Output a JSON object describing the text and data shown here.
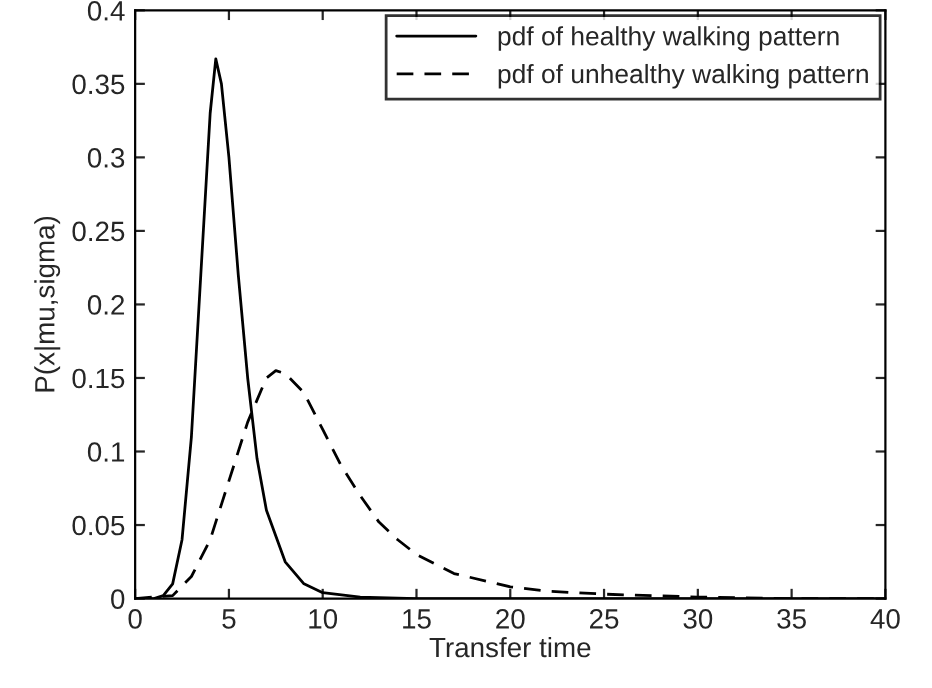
{
  "chart_data": {
    "type": "line",
    "xlabel": "Transfer time",
    "ylabel": "P(x|mu,sigma)",
    "xlim": [
      0,
      40
    ],
    "ylim": [
      0,
      0.4
    ],
    "xticks": [
      0,
      5,
      10,
      15,
      20,
      25,
      30,
      35,
      40
    ],
    "yticks": [
      0,
      0.05,
      0.1,
      0.15,
      0.2,
      0.25,
      0.3,
      0.35,
      0.4
    ],
    "grid": false,
    "legend": "top right",
    "marker": "none",
    "series": [
      {
        "name": "pdf of healthy walking pattern",
        "color": "#000000",
        "line_style": "solid",
        "x": [
          0,
          1,
          1.5,
          2,
          2.5,
          3,
          3.5,
          4,
          4.3,
          4.6,
          5,
          5.5,
          6,
          6.5,
          7,
          8,
          9,
          10,
          12,
          15,
          40
        ],
        "values": [
          0,
          0,
          0.002,
          0.01,
          0.04,
          0.11,
          0.22,
          0.33,
          0.367,
          0.35,
          0.3,
          0.22,
          0.15,
          0.095,
          0.06,
          0.025,
          0.01,
          0.004,
          0.001,
          0,
          0
        ]
      },
      {
        "name": "pdf of unhealthy walking pattern",
        "color": "#000000",
        "line_style": "dashed",
        "x": [
          0,
          2,
          3,
          4,
          5,
          6,
          7,
          7.5,
          8,
          9,
          10,
          11,
          12,
          13,
          14,
          15,
          17,
          20,
          22,
          25,
          30,
          35,
          40
        ],
        "values": [
          0,
          0.002,
          0.015,
          0.04,
          0.08,
          0.12,
          0.15,
          0.155,
          0.153,
          0.14,
          0.115,
          0.09,
          0.07,
          0.052,
          0.04,
          0.03,
          0.017,
          0.008,
          0.005,
          0.003,
          0.001,
          0,
          0
        ]
      }
    ]
  }
}
